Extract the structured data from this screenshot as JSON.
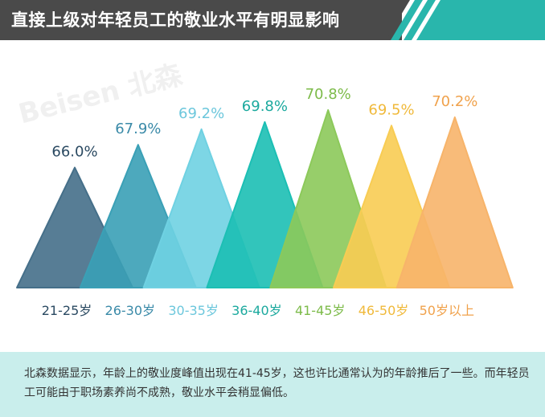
{
  "header": {
    "title": "直接上级对年轻员工的敬业水平有明显影响",
    "bar_color": "#4a4a4a",
    "stripe_color": "#29b6ac"
  },
  "watermark": {
    "text": "Beisen 北森"
  },
  "chart_data": {
    "type": "area",
    "shape": "triangle",
    "categories": [
      "21-25岁",
      "26-30岁",
      "30-35岁",
      "36-40岁",
      "41-45岁",
      "46-50岁",
      "50岁以上"
    ],
    "values": [
      66.0,
      67.9,
      69.2,
      69.8,
      70.8,
      69.5,
      70.2
    ],
    "value_labels": [
      "66.0%",
      "67.9%",
      "69.2%",
      "69.8%",
      "70.8%",
      "69.5%",
      "70.2%"
    ],
    "colors": [
      "#456f89",
      "#3aa0b6",
      "#6fd1e2",
      "#1cbfb4",
      "#8cc95a",
      "#f8cc53",
      "#f7b46a"
    ],
    "label_colors": [
      "#2b4a62",
      "#3a8aa8",
      "#6cc7dc",
      "#1ba99e",
      "#7dbb4a",
      "#f0b93a",
      "#f0a24c"
    ],
    "title": "",
    "xlabel": "",
    "ylabel": ""
  },
  "footer": {
    "text": "北森数据显示，年龄上的敬业度峰值出现在41-45岁，这也许比通常认为的年龄推后了一些。而年轻员工可能由于职场素养尚不成熟，敬业水平会稍显偏低。",
    "bg_color": "#c9eeec"
  }
}
